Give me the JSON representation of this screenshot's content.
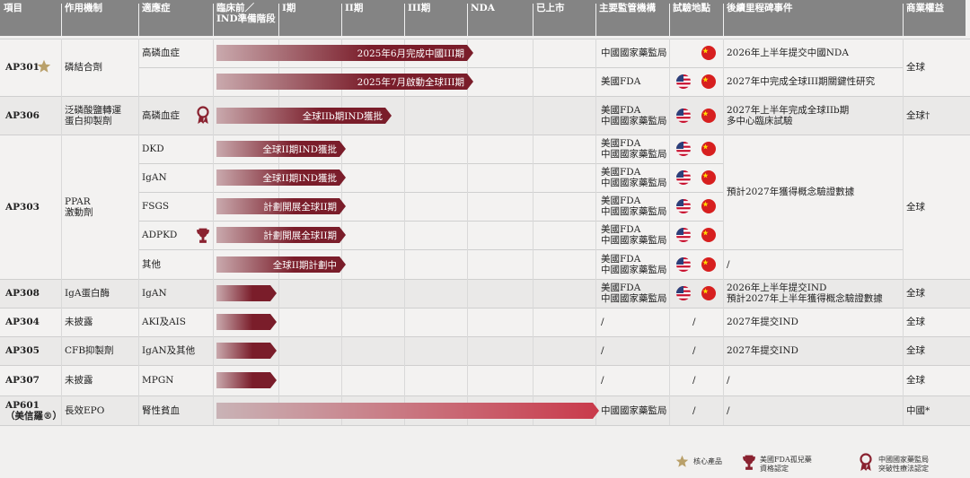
{
  "headers": [
    "項目",
    "作用機制",
    "適應症",
    "臨床前／\nIND準備階段",
    "I期",
    "II期",
    "III期",
    "NDA",
    "已上市",
    "主要監管機構",
    "試驗地點",
    "後續里程碑事件",
    "商業權益"
  ],
  "rows": [
    {
      "project": "AP301",
      "mechanism": "磷結合劑",
      "indication": "高磷血症",
      "bar_label": "2025年6月完成中國III期",
      "bar_stage": "III",
      "regulator": "中國國家藥監局",
      "sites": [
        "CN"
      ],
      "milestone": "2026年上半年提交中國NDA",
      "rights": "全球",
      "core_product": true
    },
    {
      "project": "",
      "mechanism": "",
      "indication": "",
      "bar_label": "2025年7月啟動全球III期",
      "bar_stage": "III",
      "regulator": "美國FDA",
      "sites": [
        "US",
        "CN"
      ],
      "milestone": "2027年中完成全球III期關鍵性研究",
      "rights": ""
    },
    {
      "project": "AP306",
      "mechanism": "泛磷酸鹽轉運\n蛋白抑製劑",
      "indication": "高磷血症",
      "bar_label": "全球IIb期IND獲批",
      "bar_stage": "IIb",
      "regulator": "美國FDA\n中國國家藥監局",
      "sites": [
        "US",
        "CN"
      ],
      "milestone": "2027年上半年完成全球IIb期\n多中心臨床試驗",
      "rights": "全球†",
      "cn_breakthrough": true
    },
    {
      "project": "AP303",
      "mechanism": "PPAR\n激動劑",
      "indication": "DKD",
      "bar_label": "全球II期IND獲批",
      "bar_stage": "II",
      "regulator": "美國FDA\n中國國家藥監局",
      "sites": [
        "US",
        "CN"
      ],
      "milestone": "預計2027年獲得概念驗證數據",
      "rights": "全球"
    },
    {
      "project": "",
      "mechanism": "",
      "indication": "IgAN",
      "bar_label": "全球II期IND獲批",
      "bar_stage": "II",
      "regulator": "美國FDA\n中國國家藥監局",
      "sites": [
        "US",
        "CN"
      ],
      "milestone": "",
      "rights": ""
    },
    {
      "project": "",
      "mechanism": "",
      "indication": "FSGS",
      "bar_label": "計劃開展全球II期",
      "bar_stage": "II",
      "regulator": "美國FDA\n中國國家藥監局",
      "sites": [
        "US",
        "CN"
      ],
      "milestone": "",
      "rights": ""
    },
    {
      "project": "",
      "mechanism": "",
      "indication": "ADPKD",
      "bar_label": "計劃開展全球II期",
      "bar_stage": "II",
      "regulator": "美國FDA\n中國國家藥監局",
      "sites": [
        "US",
        "CN"
      ],
      "milestone": "",
      "rights": "",
      "fda_orphan": true
    },
    {
      "project": "",
      "mechanism": "",
      "indication": "其他",
      "bar_label": "全球II期計劃中",
      "bar_stage": "II",
      "regulator": "美國FDA\n中國國家藥監局",
      "sites": [
        "US",
        "CN"
      ],
      "milestone": "/",
      "rights": ""
    },
    {
      "project": "AP308",
      "mechanism": "IgA蛋白酶",
      "indication": "IgAN",
      "bar_label": "",
      "bar_stage": "preclinical",
      "regulator": "美國FDA\n中國國家藥監局",
      "sites": [
        "US",
        "CN"
      ],
      "milestone": "2026年上半年提交IND\n預計2027年上半年獲得概念驗證數據",
      "rights": "全球"
    },
    {
      "project": "AP304",
      "mechanism": "未披露",
      "indication": "AKI及AIS",
      "bar_label": "",
      "bar_stage": "preclinical",
      "regulator": "/",
      "sites": [],
      "sites_text": "/",
      "milestone": "2027年提交IND",
      "rights": "全球"
    },
    {
      "project": "AP305",
      "mechanism": "CFB抑製劑",
      "indication": "IgAN及其他",
      "bar_label": "",
      "bar_stage": "preclinical",
      "regulator": "/",
      "sites": [],
      "sites_text": "/",
      "milestone": "2027年提交IND",
      "rights": "全球"
    },
    {
      "project": "AP307",
      "mechanism": "未披露",
      "indication": "MPGN",
      "bar_label": "",
      "bar_stage": "preclinical",
      "regulator": "/",
      "sites": [],
      "sites_text": "/",
      "milestone": "/",
      "rights": "全球"
    },
    {
      "project": "AP601\n（美信羅®）",
      "mechanism": "長效EPO",
      "indication": "腎性貧血",
      "bar_label": "",
      "bar_stage": "marketed",
      "regulator": "中國國家藥監局",
      "sites": [],
      "sites_text": "/",
      "milestone": "/",
      "rights": "中國*"
    }
  ],
  "merged": {
    "ap301_rights": "全球",
    "ap303_milestone": "預計2027年獲得概念驗證數據",
    "ap303_rights": "全球"
  },
  "legend": {
    "core": "核心產品",
    "fda": "美國FDA孤兒藥\n資格認定",
    "nmpa": "中國國家藥監局\n突破性療法認定"
  },
  "colors": {
    "header": "#848484",
    "bar_dark": "#7a1d2a",
    "bar_light": "#c9a9ad",
    "gold": "#b9a06a"
  },
  "icons": {
    "core": "star-icon",
    "fda": "trophy-icon",
    "nmpa": "award-ribbon-icon",
    "us": "us-flag-icon",
    "cn": "china-flag-icon"
  }
}
